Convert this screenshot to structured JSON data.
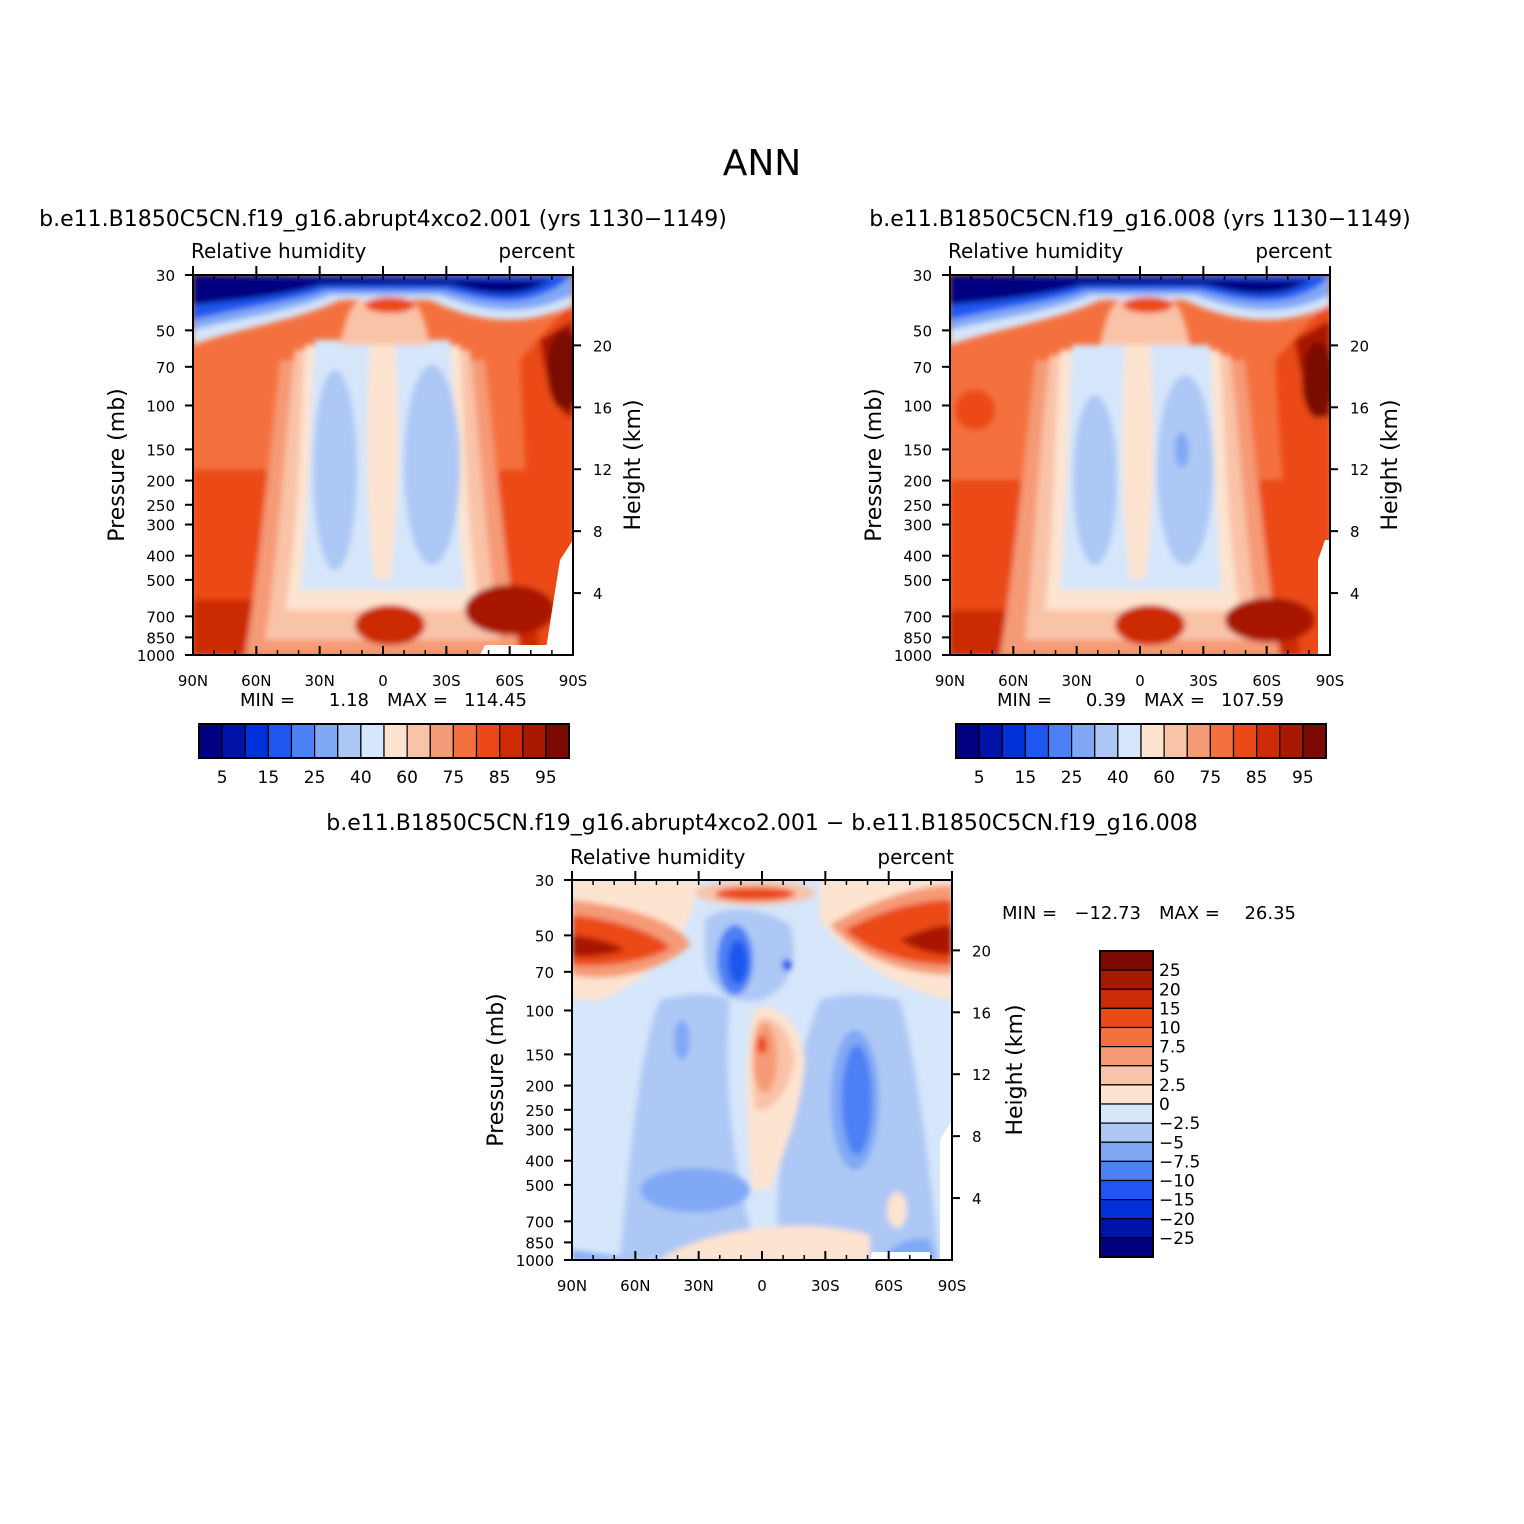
{
  "figure_title": "ANN",
  "chart_data": [
    {
      "type": "heatmap",
      "title": "b.e11.B1850C5CN.f19_g16.abrupt4xco2.001 (yrs 1130−1149)",
      "subtitle_left": "Relative humidity",
      "subtitle_right": "percent",
      "ylabel": "Pressure (mb)",
      "ylabel_right": "Height (km)",
      "x_ticks": [
        "90N",
        "60N",
        "30N",
        "0",
        "30S",
        "60S",
        "90S"
      ],
      "x_values": [
        90,
        60,
        30,
        0,
        -30,
        -60,
        -90
      ],
      "y_ticks": [
        "30",
        "50",
        "70",
        "100",
        "150",
        "200",
        "250",
        "300",
        "400",
        "500",
        "700",
        "850",
        "1000"
      ],
      "y_values": [
        30,
        50,
        70,
        100,
        150,
        200,
        250,
        300,
        400,
        500,
        700,
        850,
        1000
      ],
      "height_ticks": [
        "20",
        "16",
        "12",
        "8",
        "4"
      ],
      "height_values": [
        20,
        16,
        12,
        8,
        4
      ],
      "ylim": [
        1000,
        30
      ],
      "stats_min_label": "MIN =",
      "stats_min": "1.18",
      "stats_max_label": "MAX =",
      "stats_max": "114.45",
      "levels": [
        5,
        10,
        15,
        20,
        25,
        30,
        40,
        50,
        60,
        70,
        75,
        80,
        85,
        90,
        95
      ],
      "colorbar_labels": [
        "5",
        "15",
        "25",
        "40",
        "60",
        "75",
        "85",
        "95"
      ],
      "colors": [
        "#000080",
        "#0012a8",
        "#0030d8",
        "#1e56ef",
        "#4d80f5",
        "#80a8f5",
        "#adc8f5",
        "#d6e6fb",
        "#fde4d0",
        "#f9c3a8",
        "#f59a76",
        "#f4713f",
        "#eb4a18",
        "#cc2b06",
        "#a81904",
        "#7a0a01"
      ]
    },
    {
      "type": "heatmap",
      "title": "b.e11.B1850C5CN.f19_g16.008 (yrs 1130−1149)",
      "subtitle_left": "Relative humidity",
      "subtitle_right": "percent",
      "ylabel": "Pressure (mb)",
      "ylabel_right": "Height (km)",
      "x_ticks": [
        "90N",
        "60N",
        "30N",
        "0",
        "30S",
        "60S",
        "90S"
      ],
      "x_values": [
        90,
        60,
        30,
        0,
        -30,
        -60,
        -90
      ],
      "y_ticks": [
        "30",
        "50",
        "70",
        "100",
        "150",
        "200",
        "250",
        "300",
        "400",
        "500",
        "700",
        "850",
        "1000"
      ],
      "y_values": [
        30,
        50,
        70,
        100,
        150,
        200,
        250,
        300,
        400,
        500,
        700,
        850,
        1000
      ],
      "height_ticks": [
        "20",
        "16",
        "12",
        "8",
        "4"
      ],
      "height_values": [
        20,
        16,
        12,
        8,
        4
      ],
      "ylim": [
        1000,
        30
      ],
      "stats_min_label": "MIN =",
      "stats_min": "0.39",
      "stats_max_label": "MAX =",
      "stats_max": "107.59",
      "levels": [
        5,
        10,
        15,
        20,
        25,
        30,
        40,
        50,
        60,
        70,
        75,
        80,
        85,
        90,
        95
      ],
      "colorbar_labels": [
        "5",
        "15",
        "25",
        "40",
        "60",
        "75",
        "85",
        "95"
      ],
      "colors": [
        "#000080",
        "#0012a8",
        "#0030d8",
        "#1e56ef",
        "#4d80f5",
        "#80a8f5",
        "#adc8f5",
        "#d6e6fb",
        "#fde4d0",
        "#f9c3a8",
        "#f59a76",
        "#f4713f",
        "#eb4a18",
        "#cc2b06",
        "#a81904",
        "#7a0a01"
      ]
    },
    {
      "type": "heatmap",
      "title": "b.e11.B1850C5CN.f19_g16.abrupt4xco2.001 − b.e11.B1850C5CN.f19_g16.008",
      "subtitle_left": "Relative humidity",
      "subtitle_right": "percent",
      "ylabel": "Pressure (mb)",
      "ylabel_right": "Height (km)",
      "x_ticks": [
        "90N",
        "60N",
        "30N",
        "0",
        "30S",
        "60S",
        "90S"
      ],
      "x_values": [
        90,
        60,
        30,
        0,
        -30,
        -60,
        -90
      ],
      "y_ticks": [
        "30",
        "50",
        "70",
        "100",
        "150",
        "200",
        "250",
        "300",
        "400",
        "500",
        "700",
        "850",
        "1000"
      ],
      "y_values": [
        30,
        50,
        70,
        100,
        150,
        200,
        250,
        300,
        400,
        500,
        700,
        850,
        1000
      ],
      "height_ticks": [
        "20",
        "16",
        "12",
        "8",
        "4"
      ],
      "height_values": [
        20,
        16,
        12,
        8,
        4
      ],
      "ylim": [
        1000,
        30
      ],
      "stats_min_label": "MIN =",
      "stats_min": "−12.73",
      "stats_max_label": "MAX =",
      "stats_max": "26.35",
      "levels": [
        -25,
        -20,
        -15,
        -10,
        -7.5,
        -5,
        -2.5,
        0,
        2.5,
        5,
        7.5,
        10,
        15,
        20,
        25
      ],
      "colorbar_labels": [
        "25",
        "20",
        "15",
        "10",
        "7.5",
        "5",
        "2.5",
        "0",
        "−2.5",
        "−5",
        "−7.5",
        "−10",
        "−15",
        "−20",
        "−25"
      ],
      "colors": [
        "#000080",
        "#0012a8",
        "#0030d8",
        "#1e56ef",
        "#4d80f5",
        "#80a8f5",
        "#adc8f5",
        "#d6e6fb",
        "#fde4d0",
        "#f9c3a8",
        "#f59a76",
        "#f4713f",
        "#eb4a18",
        "#cc2b06",
        "#a81904",
        "#7a0a01"
      ]
    }
  ]
}
